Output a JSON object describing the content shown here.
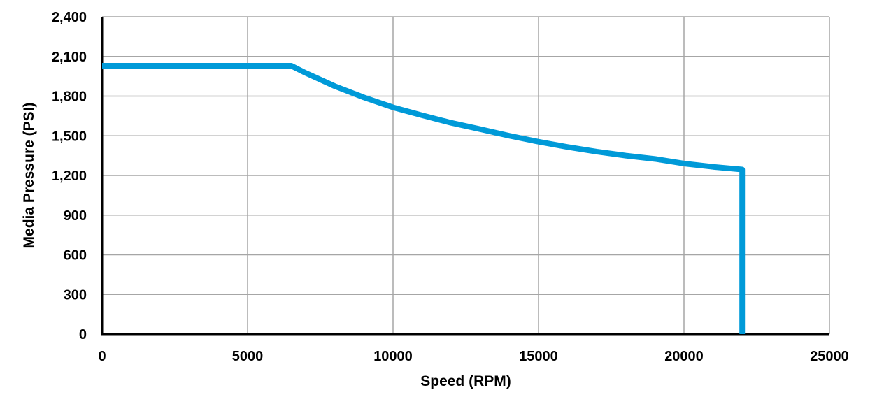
{
  "chart_data": {
    "type": "line",
    "title": "",
    "xlabel": "Speed (RPM)",
    "ylabel": "Media Pressure (PSI)",
    "xlim": [
      0,
      25000
    ],
    "ylim": [
      0,
      2400
    ],
    "x_ticks": [
      0,
      5000,
      10000,
      15000,
      20000,
      25000
    ],
    "x_tick_labels": [
      "0",
      "5000",
      "10000",
      "15000",
      "20000",
      "25000"
    ],
    "y_ticks": [
      0,
      300,
      600,
      900,
      1200,
      1500,
      1800,
      2100,
      2400
    ],
    "y_tick_labels": [
      "0",
      "300",
      "600",
      "900",
      "1,200",
      "1,500",
      "1,800",
      "2,100",
      "2,400"
    ],
    "grid": true,
    "colors": {
      "line": "#009ad8",
      "grid": "#a6a6a6",
      "axis": "#000000"
    },
    "series": [
      {
        "x": [
          0,
          6500,
          7000,
          8000,
          9000,
          10000,
          11000,
          12000,
          13000,
          14000,
          15000,
          16000,
          17000,
          18000,
          19000,
          20000,
          21000,
          22000,
          22000
        ],
        "y": [
          2030,
          2030,
          1975,
          1875,
          1790,
          1715,
          1655,
          1598,
          1550,
          1500,
          1455,
          1415,
          1380,
          1350,
          1325,
          1290,
          1265,
          1245,
          0
        ]
      }
    ]
  }
}
